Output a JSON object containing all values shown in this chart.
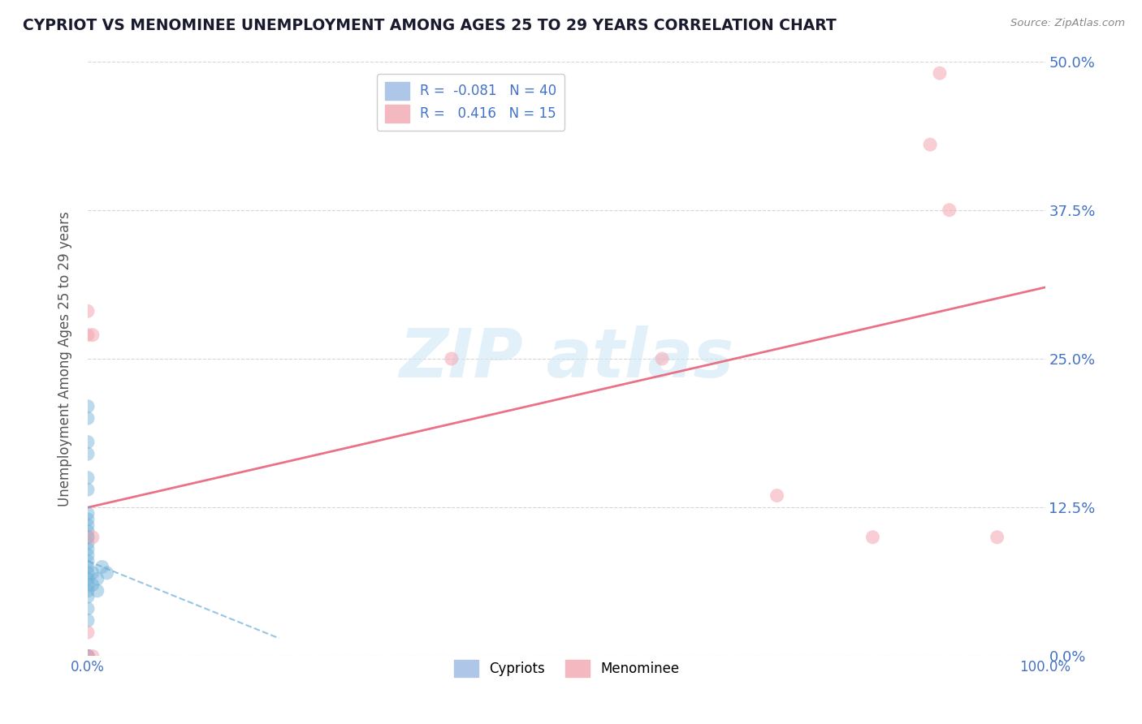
{
  "title": "CYPRIOT VS MENOMINEE UNEMPLOYMENT AMONG AGES 25 TO 29 YEARS CORRELATION CHART",
  "source": "Source: ZipAtlas.com",
  "ylabel": "Unemployment Among Ages 25 to 29 years",
  "xlim": [
    0,
    1.0
  ],
  "ylim": [
    0,
    0.5
  ],
  "yticks": [
    0.0,
    0.125,
    0.25,
    0.375,
    0.5
  ],
  "ytick_labels": [
    "0.0%",
    "12.5%",
    "25.0%",
    "37.5%",
    "50.0%"
  ],
  "xticks": [
    0.0,
    1.0
  ],
  "xtick_labels": [
    "0.0%",
    "100.0%"
  ],
  "cypriot_color": "#6baed6",
  "cypriot_edge_color": "#6baed6",
  "menominee_color": "#f4a7b2",
  "menominee_edge_color": "#f4a7b2",
  "background_color": "#ffffff",
  "grid_color": "#cccccc",
  "tick_label_color": "#4472C4",
  "title_color": "#1a1a2e",
  "ylabel_color": "#555555",
  "source_color": "#888888",
  "watermark_color": "#d0e8f5",
  "legend_text_color": "#4472C4",
  "legend_border_color": "#cccccc",
  "cypriot_legend_color": "#aec6e8",
  "menominee_legend_color": "#f4b8c1",
  "trend_pink_color": "#e8627a",
  "trend_blue_color": "#6baed6",
  "cypriot_points_x": [
    0.0,
    0.0,
    0.0,
    0.0,
    0.0,
    0.0,
    0.0,
    0.0,
    0.0,
    0.0,
    0.0,
    0.0,
    0.0,
    0.0,
    0.0,
    0.0,
    0.0,
    0.0,
    0.0,
    0.0,
    0.0,
    0.0,
    0.0,
    0.0,
    0.0,
    0.0,
    0.0,
    0.0,
    0.0,
    0.0,
    0.0,
    0.0,
    0.0,
    0.0,
    0.005,
    0.005,
    0.01,
    0.01,
    0.015,
    0.02
  ],
  "cypriot_points_y": [
    0.0,
    0.0,
    0.0,
    0.0,
    0.0,
    0.0,
    0.0,
    0.0,
    0.0,
    0.0,
    0.03,
    0.04,
    0.05,
    0.055,
    0.06,
    0.065,
    0.07,
    0.075,
    0.08,
    0.085,
    0.09,
    0.095,
    0.1,
    0.1,
    0.105,
    0.11,
    0.115,
    0.12,
    0.14,
    0.15,
    0.17,
    0.18,
    0.2,
    0.21,
    0.06,
    0.07,
    0.055,
    0.065,
    0.075,
    0.07
  ],
  "menominee_points_x": [
    0.0,
    0.0,
    0.0,
    0.0,
    0.005,
    0.005,
    0.005,
    0.38,
    0.6,
    0.72,
    0.82,
    0.88,
    0.89,
    0.9,
    0.95
  ],
  "menominee_points_y": [
    0.0,
    0.02,
    0.27,
    0.29,
    0.0,
    0.1,
    0.27,
    0.25,
    0.25,
    0.135,
    0.1,
    0.43,
    0.49,
    0.375,
    0.1
  ],
  "cypriot_trend_x": [
    0.0,
    0.2
  ],
  "cypriot_trend_y": [
    0.08,
    0.015
  ],
  "menominee_trend_x": [
    0.0,
    1.0
  ],
  "menominee_trend_y": [
    0.125,
    0.31
  ]
}
